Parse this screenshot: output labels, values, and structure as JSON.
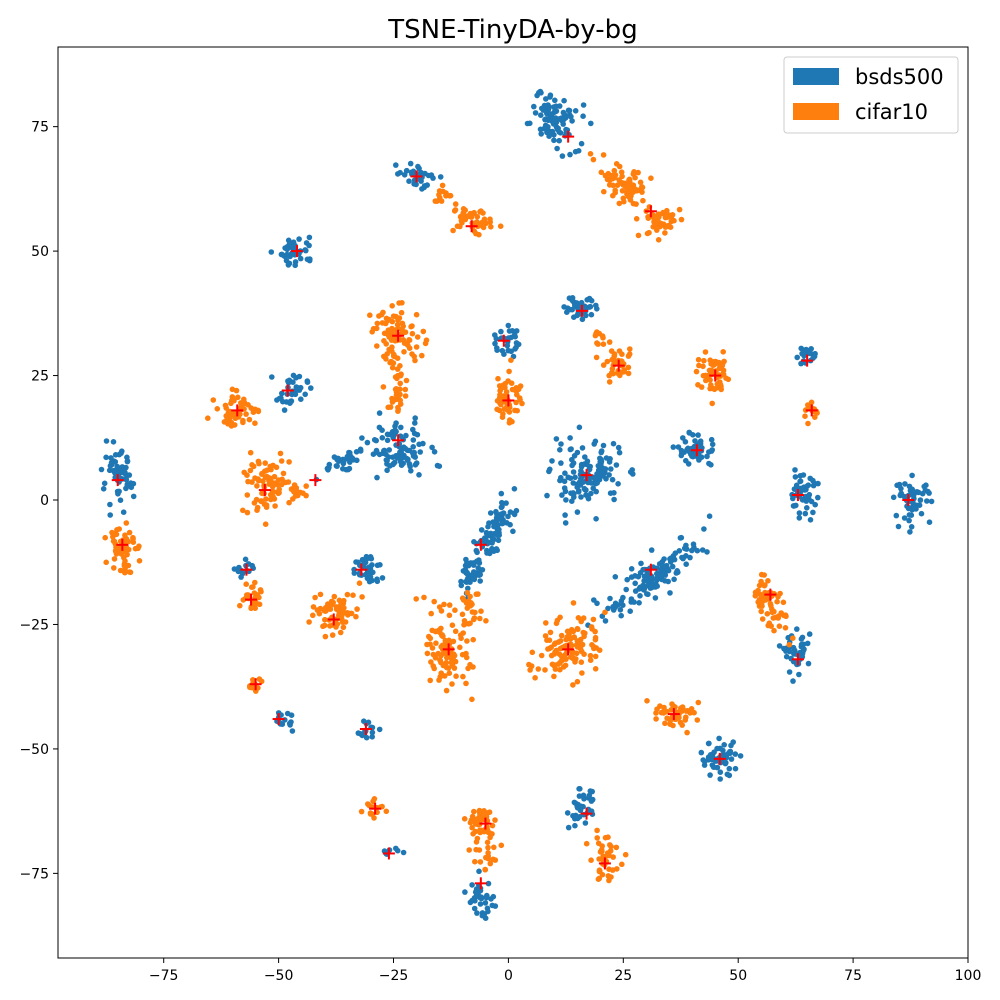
{
  "chart_data": {
    "type": "scatter",
    "title": "TSNE-TinyDA-by-bg",
    "xlabel": "",
    "ylabel": "",
    "xlim": [
      -98,
      100
    ],
    "ylim": [
      -92,
      91
    ],
    "xticks": [
      -75,
      -50,
      -25,
      0,
      25,
      50,
      75,
      100
    ],
    "yticks": [
      -75,
      -50,
      -25,
      0,
      25,
      50,
      75
    ],
    "grid": false,
    "legend_position": "top-right",
    "series": [
      {
        "name": "bsds500",
        "color": "#1f77b4",
        "clusters": [
          {
            "cx": 10,
            "cy": 76,
            "rx": 6,
            "ry": 4,
            "angle": -35,
            "n": 90
          },
          {
            "cx": -20,
            "cy": 65,
            "rx": 3.5,
            "ry": 2,
            "angle": -15,
            "n": 35
          },
          {
            "cx": -46,
            "cy": 50,
            "rx": 3.5,
            "ry": 2.5,
            "angle": 0,
            "n": 45
          },
          {
            "cx": 16,
            "cy": 39,
            "rx": 3.5,
            "ry": 2.5,
            "angle": 0,
            "n": 40
          },
          {
            "cx": -1,
            "cy": 32,
            "rx": 2.5,
            "ry": 3,
            "angle": 0,
            "n": 30
          },
          {
            "cx": 65,
            "cy": 29,
            "rx": 2,
            "ry": 1.8,
            "angle": 0,
            "n": 20
          },
          {
            "cx": -47,
            "cy": 22,
            "rx": 3,
            "ry": 3,
            "angle": 0,
            "n": 35
          },
          {
            "cx": -24,
            "cy": 10,
            "rx": 6,
            "ry": 5,
            "angle": 0,
            "n": 90
          },
          {
            "cx": -36,
            "cy": 8,
            "rx": 5,
            "ry": 1.5,
            "angle": 25,
            "n": 35
          },
          {
            "cx": 17,
            "cy": 5,
            "rx": 7,
            "ry": 6,
            "angle": 0,
            "n": 130
          },
          {
            "cx": 41,
            "cy": 10,
            "rx": 4,
            "ry": 3,
            "angle": 0,
            "n": 50
          },
          {
            "cx": -85,
            "cy": 4,
            "rx": 3,
            "ry": 5,
            "angle": 0,
            "n": 60
          },
          {
            "cx": 64,
            "cy": 1,
            "rx": 3,
            "ry": 3.5,
            "angle": 0,
            "n": 50
          },
          {
            "cx": 88,
            "cy": 0,
            "rx": 3.5,
            "ry": 4,
            "angle": 0,
            "n": 55
          },
          {
            "cx": -3,
            "cy": -6,
            "rx": 8,
            "ry": 2.5,
            "angle": 60,
            "n": 80
          },
          {
            "cx": -8,
            "cy": -14,
            "rx": 4,
            "ry": 2,
            "angle": 70,
            "n": 40
          },
          {
            "cx": 32,
            "cy": -15,
            "rx": 12,
            "ry": 3,
            "angle": 35,
            "n": 130
          },
          {
            "cx": -31,
            "cy": -14,
            "rx": 3,
            "ry": 3,
            "angle": 0,
            "n": 40
          },
          {
            "cx": -57,
            "cy": -14,
            "rx": 2,
            "ry": 1.8,
            "angle": 0,
            "n": 15
          },
          {
            "cx": 63,
            "cy": -31,
            "rx": 2.5,
            "ry": 3.5,
            "angle": 0,
            "n": 40
          },
          {
            "cx": -49,
            "cy": -44,
            "rx": 2,
            "ry": 1.8,
            "angle": 0,
            "n": 15
          },
          {
            "cx": -31,
            "cy": -46,
            "rx": 2,
            "ry": 1.8,
            "angle": 0,
            "n": 18
          },
          {
            "cx": 46,
            "cy": -52,
            "rx": 4,
            "ry": 3,
            "angle": 0,
            "n": 55
          },
          {
            "cx": 16,
            "cy": -62,
            "rx": 2.5,
            "ry": 3.5,
            "angle": 0,
            "n": 35
          },
          {
            "cx": -26,
            "cy": -71,
            "rx": 2,
            "ry": 1,
            "angle": 0,
            "n": 10
          },
          {
            "cx": -6,
            "cy": -80,
            "rx": 2.5,
            "ry": 3.5,
            "angle": 0,
            "n": 35
          }
        ]
      },
      {
        "name": "cifar10",
        "color": "#ff7f0e",
        "clusters": [
          {
            "cx": 25,
            "cy": 63,
            "rx": 6,
            "ry": 3,
            "angle": -35,
            "n": 70
          },
          {
            "cx": 33,
            "cy": 56,
            "rx": 4,
            "ry": 3,
            "angle": 0,
            "n": 50
          },
          {
            "cx": -8,
            "cy": 56,
            "rx": 4,
            "ry": 2.5,
            "angle": -10,
            "n": 45
          },
          {
            "cx": -14,
            "cy": 61,
            "rx": 2.5,
            "ry": 1.5,
            "angle": -20,
            "n": 15
          },
          {
            "cx": -24,
            "cy": 33,
            "rx": 5,
            "ry": 5,
            "angle": 0,
            "n": 90
          },
          {
            "cx": -24,
            "cy": 22,
            "rx": 2,
            "ry": 5,
            "angle": 0,
            "n": 30
          },
          {
            "cx": 0,
            "cy": 21,
            "rx": 2.5,
            "ry": 5,
            "angle": 0,
            "n": 55
          },
          {
            "cx": 24,
            "cy": 27,
            "rx": 3,
            "ry": 2.5,
            "angle": 0,
            "n": 40
          },
          {
            "cx": 20,
            "cy": 32,
            "rx": 1.5,
            "ry": 2,
            "angle": 0,
            "n": 10
          },
          {
            "cx": 45,
            "cy": 25,
            "rx": 3.5,
            "ry": 3.5,
            "angle": 0,
            "n": 55
          },
          {
            "cx": 66,
            "cy": 18,
            "rx": 1.8,
            "ry": 2,
            "angle": 0,
            "n": 15
          },
          {
            "cx": -59,
            "cy": 18,
            "rx": 4,
            "ry": 3,
            "angle": 0,
            "n": 55
          },
          {
            "cx": -53,
            "cy": 3,
            "rx": 5,
            "ry": 5,
            "angle": 0,
            "n": 80
          },
          {
            "cx": -46,
            "cy": 2,
            "rx": 3,
            "ry": 1.5,
            "angle": 0,
            "n": 15
          },
          {
            "cx": -84,
            "cy": -9,
            "rx": 2.5,
            "ry": 5,
            "angle": 0,
            "n": 55
          },
          {
            "cx": -56,
            "cy": -19,
            "rx": 2.5,
            "ry": 3,
            "angle": 0,
            "n": 25
          },
          {
            "cx": -38,
            "cy": -23,
            "rx": 5,
            "ry": 4,
            "angle": 30,
            "n": 70
          },
          {
            "cx": 57,
            "cy": -21,
            "rx": 2.5,
            "ry": 6,
            "angle": 30,
            "n": 60
          },
          {
            "cx": -13,
            "cy": -30,
            "rx": 4,
            "ry": 7,
            "angle": 10,
            "n": 110
          },
          {
            "cx": -8,
            "cy": -21,
            "rx": 2,
            "ry": 4,
            "angle": 15,
            "n": 20
          },
          {
            "cx": 13,
            "cy": -30,
            "rx": 7,
            "ry": 5,
            "angle": 30,
            "n": 120
          },
          {
            "cx": 36,
            "cy": -43,
            "rx": 4,
            "ry": 2.5,
            "angle": -20,
            "n": 50
          },
          {
            "cx": -55,
            "cy": -37,
            "rx": 2,
            "ry": 1.5,
            "angle": 0,
            "n": 15
          },
          {
            "cx": -29,
            "cy": -62,
            "rx": 2,
            "ry": 1.5,
            "angle": 0,
            "n": 15
          },
          {
            "cx": -6,
            "cy": -65,
            "rx": 3.5,
            "ry": 3.5,
            "angle": 0,
            "n": 55
          },
          {
            "cx": -5,
            "cy": -72,
            "rx": 1.5,
            "ry": 3,
            "angle": 0,
            "n": 15
          },
          {
            "cx": 21,
            "cy": -72,
            "rx": 3,
            "ry": 4,
            "angle": 0,
            "n": 45
          }
        ]
      }
    ],
    "centroids": {
      "color": "#ff0000",
      "marker": "plus",
      "points": [
        [
          13,
          73
        ],
        [
          31,
          58
        ],
        [
          -20,
          65
        ],
        [
          -8,
          55
        ],
        [
          -46,
          50
        ],
        [
          16,
          38
        ],
        [
          -1,
          32
        ],
        [
          -24,
          33
        ],
        [
          24,
          27
        ],
        [
          45,
          25
        ],
        [
          65,
          28
        ],
        [
          -48,
          22
        ],
        [
          -59,
          18
        ],
        [
          0,
          20
        ],
        [
          66,
          18
        ],
        [
          -24,
          12
        ],
        [
          17,
          5
        ],
        [
          41,
          10
        ],
        [
          -85,
          4
        ],
        [
          -53,
          2
        ],
        [
          -42,
          4
        ],
        [
          63,
          1
        ],
        [
          87,
          0
        ],
        [
          -84,
          -9
        ],
        [
          -6,
          -9
        ],
        [
          -57,
          -14
        ],
        [
          -32,
          -14
        ],
        [
          31,
          -14
        ],
        [
          57,
          -19
        ],
        [
          -56,
          -20
        ],
        [
          -38,
          -24
        ],
        [
          -13,
          -30
        ],
        [
          13,
          -30
        ],
        [
          63,
          -32
        ],
        [
          -55,
          -37
        ],
        [
          36,
          -43
        ],
        [
          -50,
          -44
        ],
        [
          -31,
          -46
        ],
        [
          46,
          -52
        ],
        [
          -29,
          -62
        ],
        [
          17,
          -63
        ],
        [
          -5,
          -65
        ],
        [
          -26,
          -71
        ],
        [
          21,
          -73
        ],
        [
          -6,
          -77
        ]
      ]
    }
  }
}
